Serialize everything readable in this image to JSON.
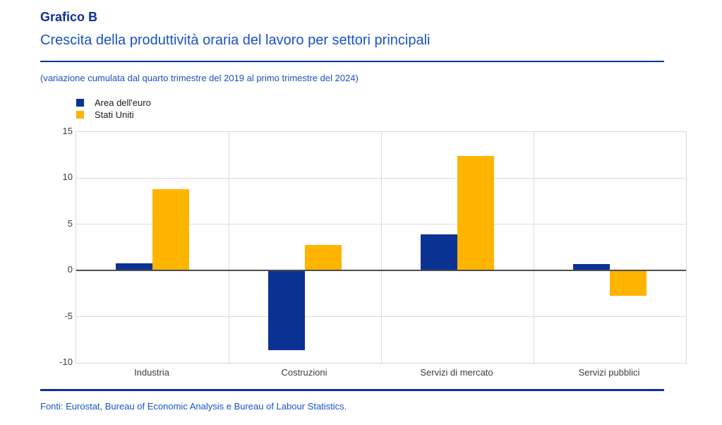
{
  "header": {
    "kicker": "Grafico B",
    "title": "Crescita della produttività oraria del lavoro per settori principali",
    "note": "(variazione cumulata dal quarto trimestre del 2019 al primo trimestre del 2024)"
  },
  "legend": [
    {
      "label": "Area dell'euro",
      "color": "#0a3293"
    },
    {
      "label": "Stati Uniti",
      "color": "#ffb400"
    }
  ],
  "chart_data": {
    "type": "bar",
    "categories": [
      "Industria",
      "Costruzioni",
      "Servizi di mercato",
      "Servizi pubblici"
    ],
    "series": [
      {
        "name": "Area dell'euro",
        "color": "#0a3293",
        "values": [
          0.8,
          -8.6,
          3.9,
          0.7
        ]
      },
      {
        "name": "Stati Uniti",
        "color": "#ffb400",
        "values": [
          8.8,
          2.8,
          12.4,
          -2.7
        ]
      }
    ],
    "title": "Crescita della produttività oraria del lavoro per settori principali",
    "subtitle_note": "(variazione cumulata dal quarto trimestre del 2019 al primo trimestre del 2024)",
    "xlabel": "",
    "ylabel": "",
    "ylim": [
      -10,
      15
    ],
    "yticks": [
      15,
      10,
      5,
      0,
      -5,
      -10
    ],
    "grid": true,
    "legend_position": "top-left"
  },
  "footer": {
    "source": "Fonti: Eurostat, Bureau of Economic Analysis e Bureau of Labour Statistics."
  },
  "colors": {
    "title_blue": "#0d2f9e",
    "subtitle_blue": "#1a52c4",
    "bar_blue": "#0a3293",
    "bar_orange": "#ffb400",
    "axis_text": "#3d3d3d",
    "gridline": "#dcdcdc",
    "zero_line": "#4d4d4d"
  }
}
